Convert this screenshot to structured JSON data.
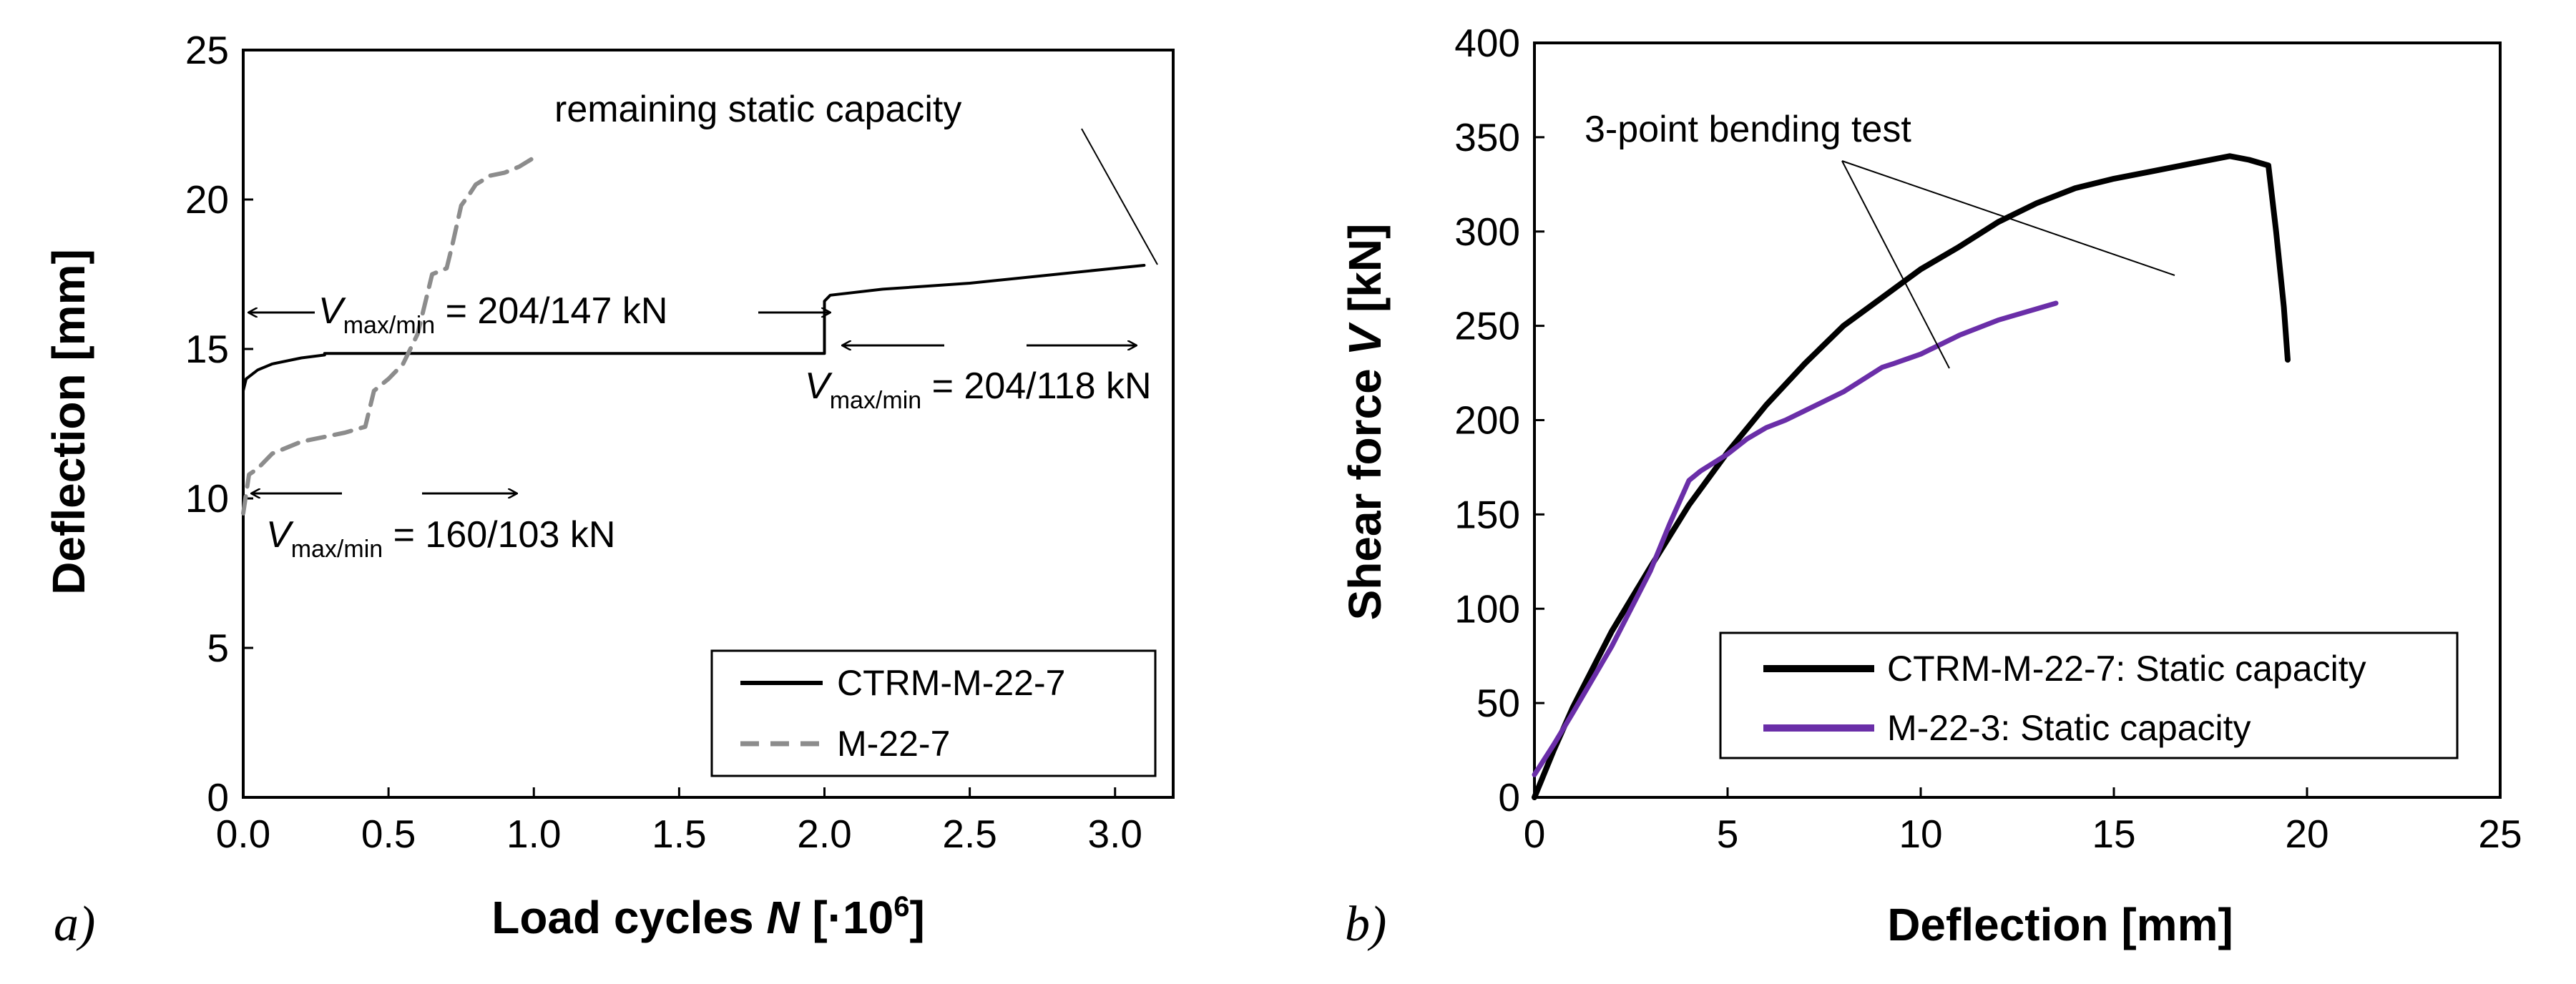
{
  "chart_data": [
    {
      "type": "line",
      "panel_label": "a)",
      "xlabel_main": "Load cycles ",
      "xlabel_var": "N",
      "xlabel_bracket": " [·10",
      "xlabel_exp": "6",
      "xlabel_close": "]",
      "ylabel": "Deflection [mm]",
      "xlim": [
        0,
        3.2
      ],
      "ylim": [
        0,
        25
      ],
      "xticks": [
        "0.0",
        "0.5",
        "1.0",
        "1.5",
        "2.0",
        "2.5",
        "3.0"
      ],
      "xtick_values": [
        0,
        0.5,
        1.0,
        1.5,
        2.0,
        2.5,
        3.0
      ],
      "yticks": [
        "0",
        "5",
        "10",
        "15",
        "20",
        "25"
      ],
      "ytick_values": [
        0,
        5,
        10,
        15,
        20,
        25
      ],
      "series": [
        {
          "name": "CTRM-M-22-7",
          "color": "#000000",
          "style": "solid",
          "x": [
            0,
            0.01,
            0.05,
            0.1,
            0.2,
            0.28,
            0.28,
            1.0,
            1.5,
            2.0,
            2.0,
            2.02,
            2.2,
            2.5,
            2.8,
            3.0,
            3.1
          ],
          "y": [
            13.6,
            14.0,
            14.3,
            14.5,
            14.7,
            14.8,
            14.85,
            14.85,
            14.85,
            14.85,
            16.6,
            16.8,
            17.0,
            17.2,
            17.5,
            17.7,
            17.8
          ]
        },
        {
          "name": "M-22-7",
          "color": "#8c8c8c",
          "style": "dashed",
          "x": [
            0,
            0.02,
            0.05,
            0.1,
            0.2,
            0.35,
            0.42,
            0.45,
            0.5,
            0.55,
            0.6,
            0.65,
            0.7,
            0.72,
            0.75,
            0.78,
            0.8,
            0.85,
            0.9,
            0.95,
            1.0
          ],
          "y": [
            9.5,
            10.8,
            11.0,
            11.5,
            11.9,
            12.2,
            12.4,
            13.6,
            14.0,
            14.5,
            15.5,
            17.5,
            17.7,
            18.5,
            19.8,
            20.2,
            20.5,
            20.8,
            20.9,
            21.1,
            21.4
          ]
        }
      ],
      "annotations": {
        "remaining": "remaining static capacity",
        "v1_prefix": "V",
        "v1_sub": "max/min",
        "v1_value": " = 204/147 kN",
        "v2_prefix": "V",
        "v2_sub": "max/min",
        "v2_value": " = 204/118 kN",
        "v3_prefix": "V",
        "v3_sub": "max/min",
        "v3_value": " = 160/103 kN"
      },
      "legend_placement": "bottom-right"
    },
    {
      "type": "line",
      "panel_label": "b)",
      "xlabel": "Deflection [mm]",
      "ylabel_main": "Shear force  ",
      "ylabel_var": "V",
      "ylabel_unit": " [kN]",
      "xlim": [
        0,
        25
      ],
      "ylim": [
        0,
        400
      ],
      "xticks": [
        "0",
        "5",
        "10",
        "15",
        "20",
        "25"
      ],
      "xtick_values": [
        0,
        5,
        10,
        15,
        20,
        25
      ],
      "yticks": [
        "0",
        "50",
        "100",
        "150",
        "200",
        "250",
        "300",
        "350",
        "400"
      ],
      "ytick_values": [
        0,
        50,
        100,
        150,
        200,
        250,
        300,
        350,
        400
      ],
      "series": [
        {
          "name": "CTRM-M-22-7: Static capacity",
          "color": "#000000",
          "style": "solid",
          "x": [
            0,
            0.5,
            1,
            2,
            3,
            4,
            5,
            6,
            7,
            8,
            9,
            10,
            11,
            12,
            13,
            14,
            15,
            16,
            17,
            18,
            18.5,
            19,
            19.2,
            19.4,
            19.5
          ],
          "y": [
            0,
            25,
            48,
            88,
            122,
            155,
            183,
            208,
            230,
            250,
            265,
            280,
            292,
            305,
            315,
            323,
            328,
            332,
            336,
            340,
            338,
            335,
            300,
            260,
            232
          ]
        },
        {
          "name": "M-22-3: Static capacity",
          "color": "#6a2ea8",
          "style": "solid",
          "x": [
            0,
            0.5,
            1,
            2,
            3,
            3.5,
            4,
            4.3,
            5,
            5.5,
            6,
            6.5,
            7,
            8,
            9,
            9.3,
            10,
            11,
            12,
            13,
            13.5
          ],
          "y": [
            12,
            28,
            45,
            80,
            120,
            145,
            168,
            173,
            182,
            190,
            196,
            200,
            205,
            215,
            228,
            230,
            235,
            245,
            253,
            259,
            262
          ]
        }
      ],
      "annotations": {
        "bending": "3-point bending test"
      },
      "legend_placement": "bottom-right"
    }
  ]
}
